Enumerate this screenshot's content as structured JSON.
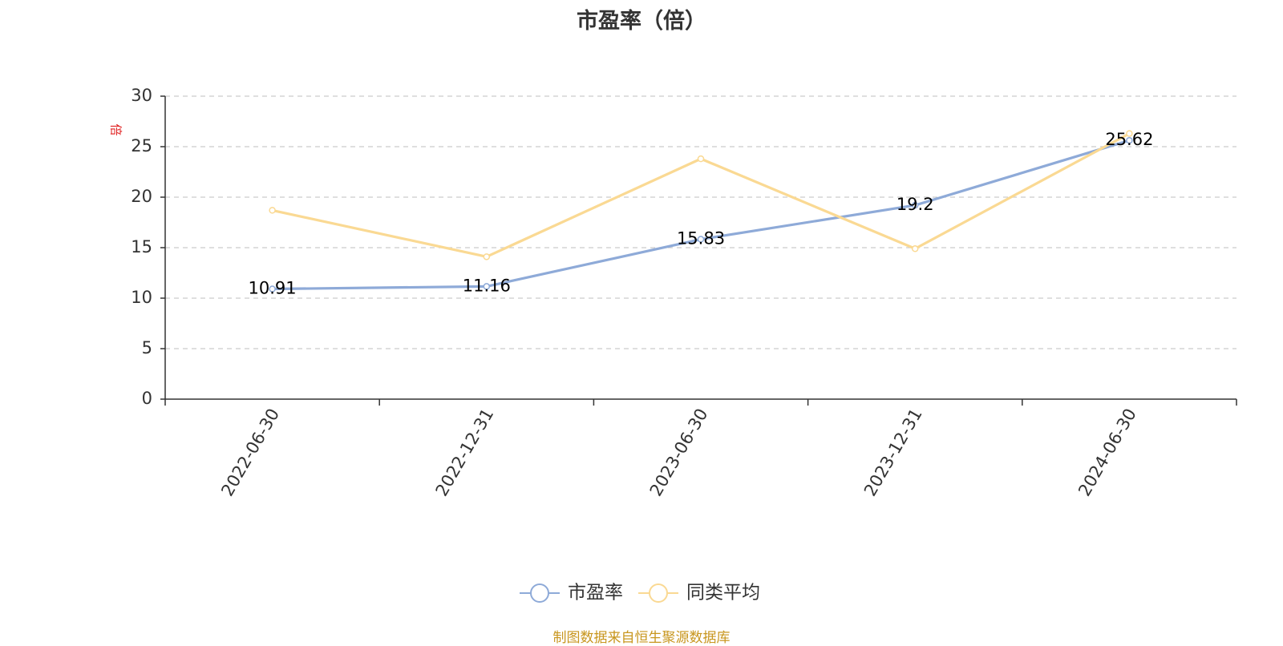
{
  "chart_data": {
    "type": "line",
    "title": "市盈率（倍）",
    "ylabel": "倍",
    "categories": [
      "2022-06-30",
      "2022-12-31",
      "2023-06-30",
      "2023-12-31",
      "2024-06-30"
    ],
    "ylim": [
      0,
      30
    ],
    "yticks": [
      0,
      5,
      10,
      15,
      20,
      25,
      30
    ],
    "grid": true,
    "legend_position": "bottom-center",
    "series": [
      {
        "name": "市盈率",
        "color": "#8eaad8",
        "values": [
          10.91,
          11.16,
          15.83,
          19.2,
          25.62
        ],
        "labels": [
          "10.91",
          "11.16",
          "15.83",
          "19.2",
          "25.62"
        ]
      },
      {
        "name": "同类平均",
        "color": "#fad993",
        "values": [
          18.7,
          14.1,
          23.8,
          14.9,
          26.3
        ]
      }
    ]
  },
  "source_note": "制图数据来自恒生聚源数据库",
  "colors": {
    "axis": "#333333",
    "grid": "#cccccc",
    "ylabel": "#e02020",
    "source": "#c8961e"
  }
}
